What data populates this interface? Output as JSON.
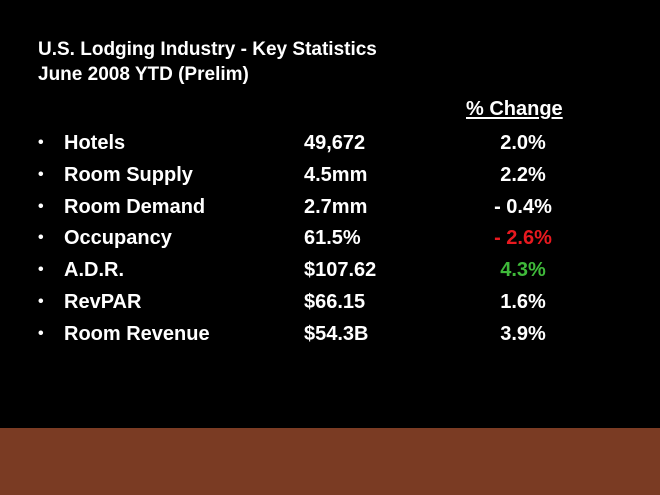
{
  "title": {
    "line1": "U.S. Lodging Industry - Key Statistics",
    "line2": "June 2008 YTD (Prelim)"
  },
  "table": {
    "change_header": "% Change",
    "bullet": "•",
    "rows": [
      {
        "label": "Hotels",
        "value": "49,672",
        "change": "2.0%",
        "change_color": "#ffffff"
      },
      {
        "label": "Room Supply",
        "value": "4.5mm",
        "change": "2.2%",
        "change_color": "#ffffff"
      },
      {
        "label": "Room Demand",
        "value": "2.7mm",
        "change": "- 0.4%",
        "change_color": "#ffffff"
      },
      {
        "label": "Occupancy",
        "value": "61.5%",
        "change": "- 2.6%",
        "change_color": "#e8191f"
      },
      {
        "label": "A.D.R.",
        "value": "$107.62",
        "change": "4.3%",
        "change_color": "#3fb93a"
      },
      {
        "label": "RevPAR",
        "value": "$66.15",
        "change": "1.6%",
        "change_color": "#ffffff"
      },
      {
        "label": "Room Revenue",
        "value": "$54.3B",
        "change": "3.9%",
        "change_color": "#ffffff"
      }
    ]
  },
  "colors": {
    "background": "#000000",
    "footer_band": "#7a3b23",
    "text": "#ffffff"
  }
}
